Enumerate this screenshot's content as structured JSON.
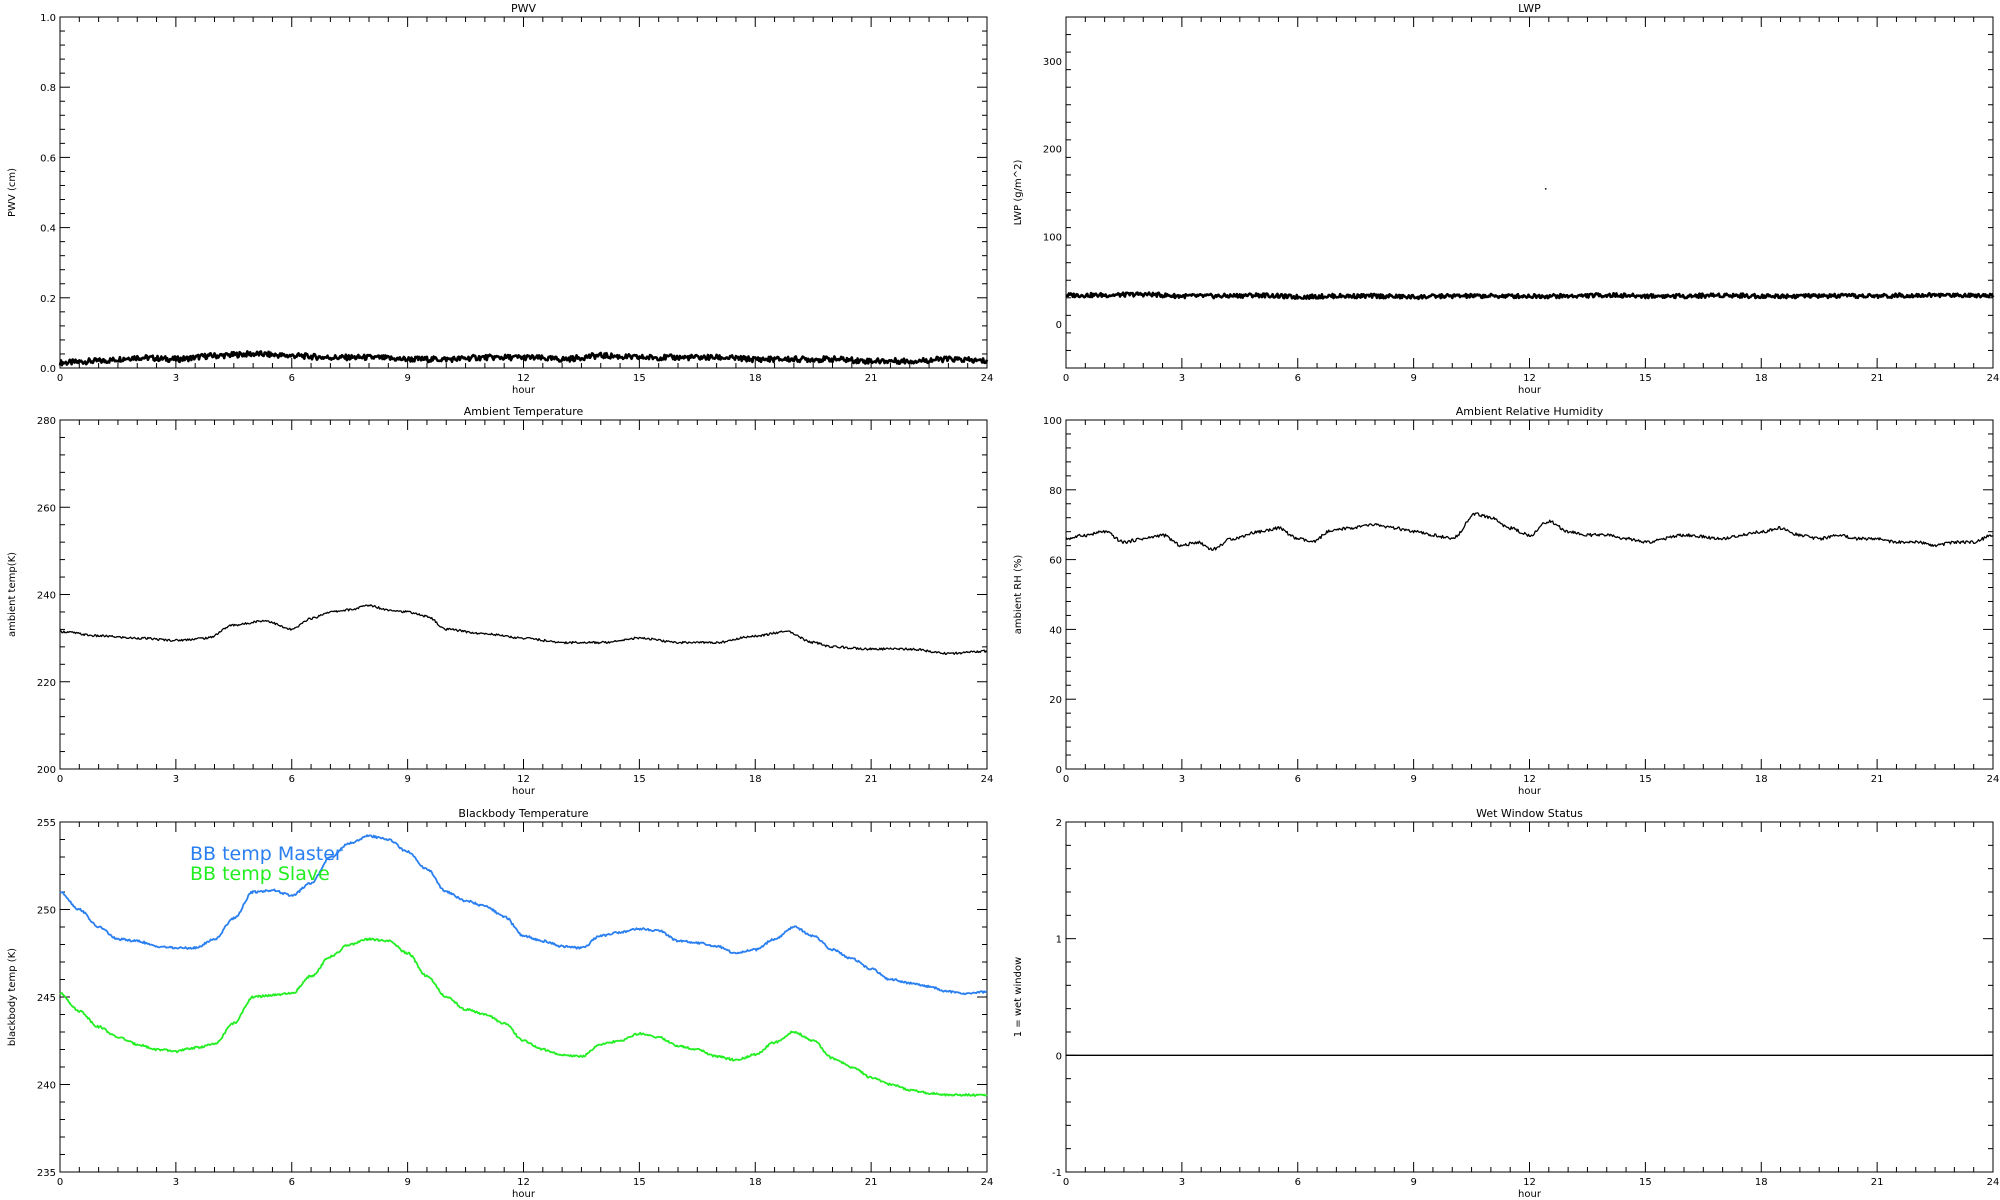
{
  "chart_data": [
    {
      "type": "line",
      "title": "PWV",
      "xlabel": "hour",
      "ylabel": "PWV (cm)",
      "xlim": [
        0,
        24
      ],
      "ylim": [
        0,
        1
      ],
      "x_ticks": [
        "0",
        "3",
        "6",
        "9",
        "12",
        "15",
        "18",
        "21",
        "24"
      ],
      "y_ticks": [
        "0.0",
        "0.2",
        "0.4",
        "0.6",
        "0.8",
        "1.0"
      ],
      "series": [
        {
          "color": "#000000",
          "x": [
            0,
            1,
            2,
            3,
            4,
            5,
            6,
            7,
            8,
            9,
            10,
            11,
            12,
            13,
            14,
            15,
            16,
            17,
            18,
            19,
            20,
            21,
            22,
            23,
            24
          ],
          "values": [
            0.015,
            0.02,
            0.03,
            0.025,
            0.035,
            0.04,
            0.035,
            0.03,
            0.03,
            0.025,
            0.025,
            0.03,
            0.03,
            0.025,
            0.035,
            0.03,
            0.03,
            0.03,
            0.025,
            0.025,
            0.025,
            0.02,
            0.02,
            0.025,
            0.02
          ]
        }
      ]
    },
    {
      "type": "line",
      "title": "LWP",
      "xlabel": "hour",
      "ylabel": "LWP (g/m^2)",
      "xlim": [
        0,
        24
      ],
      "ylim": [
        -50,
        350
      ],
      "x_ticks": [
        "0",
        "3",
        "6",
        "9",
        "12",
        "15",
        "18",
        "21",
        "24"
      ],
      "y_ticks": [
        "0",
        "100",
        "200",
        "300"
      ],
      "series": [
        {
          "color": "#000000",
          "x": [
            0,
            1,
            2,
            3,
            4,
            5,
            6,
            7,
            8,
            9,
            10,
            11,
            12,
            13,
            14,
            15,
            16,
            17,
            18,
            19,
            20,
            21,
            22,
            23,
            24
          ],
          "values": [
            33,
            33,
            34,
            32,
            32,
            33,
            31,
            32,
            32,
            31,
            32,
            32,
            32,
            32,
            33,
            32,
            32,
            33,
            32,
            32,
            32,
            32,
            33,
            33,
            33
          ]
        }
      ]
    },
    {
      "type": "line",
      "title": "Ambient Temperature",
      "xlabel": "hour",
      "ylabel": "ambient temp(K)",
      "xlim": [
        0,
        24
      ],
      "ylim": [
        200,
        280
      ],
      "x_ticks": [
        "0",
        "3",
        "6",
        "9",
        "12",
        "15",
        "18",
        "21",
        "24"
      ],
      "y_ticks": [
        "200",
        "220",
        "240",
        "260",
        "280"
      ],
      "series": [
        {
          "color": "#000000",
          "x": [
            0,
            1,
            2,
            3,
            3.8,
            4.5,
            5.3,
            6,
            6.5,
            7,
            7.5,
            8,
            8.5,
            9,
            9.5,
            10,
            11,
            12,
            13,
            14,
            15,
            16,
            17,
            18,
            18.8,
            19.5,
            20,
            21,
            22,
            23,
            24
          ],
          "values": [
            231.5,
            230.5,
            230,
            229.5,
            230,
            233,
            234,
            232,
            234.5,
            236,
            236.5,
            237.5,
            236.5,
            236,
            235,
            232,
            231,
            230,
            229,
            229,
            230,
            229,
            229,
            230.5,
            231.5,
            229,
            228,
            227.5,
            227.5,
            226.5,
            227
          ]
        }
      ]
    },
    {
      "type": "line",
      "title": "Ambient Relative Humidity",
      "xlabel": "hour",
      "ylabel": "ambient RH (%)",
      "xlim": [
        0,
        24
      ],
      "ylim": [
        0,
        100
      ],
      "x_ticks": [
        "0",
        "3",
        "6",
        "9",
        "12",
        "15",
        "18",
        "21",
        "24"
      ],
      "y_ticks": [
        "0",
        "20",
        "40",
        "60",
        "80",
        "100"
      ],
      "series": [
        {
          "color": "#000000",
          "x": [
            0,
            0.5,
            1,
            1.5,
            2,
            2.5,
            3,
            3.4,
            3.8,
            4.3,
            5,
            5.5,
            6,
            6.4,
            6.8,
            7.3,
            8,
            8.5,
            9,
            9.5,
            10,
            10.6,
            11,
            11.5,
            12,
            12.5,
            13,
            13.5,
            14,
            14.5,
            15,
            16,
            17,
            17.5,
            18,
            18.5,
            19,
            19.5,
            20,
            20.5,
            21,
            21.5,
            22,
            22.5,
            23,
            23.5,
            24
          ],
          "values": [
            66,
            67,
            68,
            65,
            66,
            67,
            64,
            65,
            63,
            66,
            68,
            69,
            66,
            65,
            68,
            69,
            70,
            69,
            68,
            67,
            66,
            73,
            72,
            69,
            67,
            71,
            68,
            67,
            67,
            66,
            65,
            67,
            66,
            67,
            68,
            69,
            67,
            66,
            67,
            66,
            66,
            65,
            65,
            64,
            65,
            65,
            67
          ]
        }
      ]
    },
    {
      "type": "line",
      "title": "Blackbody Temperature",
      "xlabel": "hour",
      "ylabel": "blackbody temp (K)",
      "xlim": [
        0,
        24
      ],
      "ylim": [
        235,
        255
      ],
      "x_ticks": [
        "0",
        "3",
        "6",
        "9",
        "12",
        "15",
        "18",
        "21",
        "24"
      ],
      "y_ticks": [
        "235",
        "240",
        "245",
        "250",
        "255"
      ],
      "series": [
        {
          "name": "BB temp Master",
          "color": "#2a7ff0",
          "x": [
            0,
            0.5,
            1,
            1.5,
            2,
            2.5,
            3,
            3.5,
            4,
            4.5,
            5,
            5.5,
            6,
            6.5,
            7,
            7.5,
            8,
            8.5,
            9,
            9.5,
            10,
            10.5,
            11,
            11.5,
            12,
            12.5,
            13,
            13.5,
            14,
            14.5,
            15,
            15.5,
            16,
            16.5,
            17,
            17.5,
            18,
            18.5,
            19,
            19.5,
            20,
            20.5,
            21,
            21.5,
            22,
            22.5,
            23,
            23.5,
            24
          ],
          "values": [
            251,
            250,
            249,
            248.3,
            248.2,
            247.9,
            247.8,
            247.8,
            248.3,
            249.5,
            251,
            251.1,
            250.8,
            251.5,
            253,
            253.8,
            254.2,
            254,
            253.3,
            252.3,
            251,
            250.5,
            250.2,
            249.6,
            248.5,
            248.2,
            247.9,
            247.8,
            248.5,
            248.7,
            248.9,
            248.8,
            248.2,
            248.1,
            247.9,
            247.5,
            247.7,
            248.3,
            249,
            248.5,
            247.7,
            247.2,
            246.6,
            246,
            245.8,
            245.6,
            245.3,
            245.2,
            245.3
          ]
        },
        {
          "name": "BB temp Slave",
          "color": "#22ee22",
          "x": [
            0,
            0.5,
            1,
            1.5,
            2,
            2.5,
            3,
            3.5,
            4,
            4.5,
            5,
            5.5,
            6,
            6.5,
            7,
            7.5,
            8,
            8.5,
            9,
            9.5,
            10,
            10.5,
            11,
            11.5,
            12,
            12.5,
            13,
            13.5,
            14,
            14.5,
            15,
            15.5,
            16,
            16.5,
            17,
            17.5,
            18,
            18.5,
            19,
            19.5,
            20,
            20.5,
            21,
            21.5,
            22,
            22.5,
            23,
            23.5,
            24
          ],
          "values": [
            245.2,
            244.2,
            243.3,
            242.7,
            242.3,
            242,
            241.9,
            242.1,
            242.3,
            243.5,
            245,
            245.1,
            245.2,
            246.2,
            247.3,
            248,
            248.3,
            248.2,
            247.5,
            246.2,
            245,
            244.3,
            244,
            243.5,
            242.5,
            242,
            241.7,
            241.6,
            242.3,
            242.5,
            242.9,
            242.7,
            242.2,
            242,
            241.6,
            241.4,
            241.7,
            242.4,
            243,
            242.5,
            241.5,
            241,
            240.4,
            240,
            239.7,
            239.5,
            239.4,
            239.4,
            239.4
          ]
        }
      ]
    },
    {
      "type": "line",
      "title": "Wet Window Status",
      "xlabel": "hour",
      "ylabel": "1 = wet window",
      "xlim": [
        0,
        24
      ],
      "ylim": [
        -1,
        2
      ],
      "x_ticks": [
        "0",
        "3",
        "6",
        "9",
        "12",
        "15",
        "18",
        "21",
        "24"
      ],
      "y_ticks": [
        "-1",
        "0",
        "1",
        "2"
      ],
      "series": [
        {
          "color": "#000000",
          "x": [
            0,
            24
          ],
          "values": [
            0,
            0
          ]
        }
      ]
    }
  ]
}
